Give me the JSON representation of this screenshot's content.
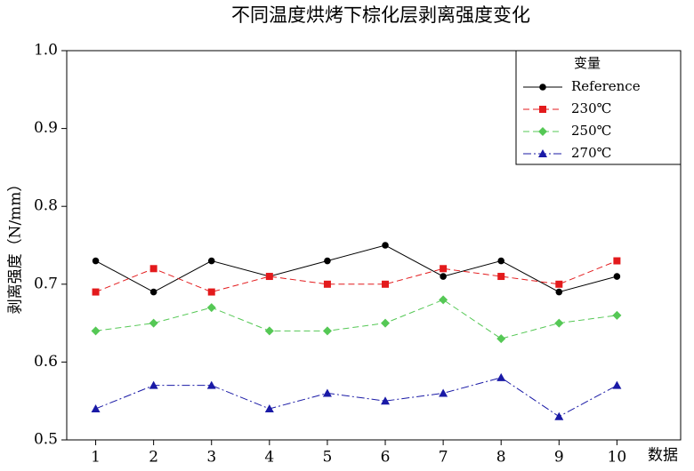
{
  "chart_data": {
    "type": "line",
    "title": "不同温度烘烤下棕化层剥离强度变化",
    "x_label": "数据",
    "y_label": "剥离强度（N/mm）",
    "legend_title": "变量",
    "legend": "top-right",
    "x": [
      1,
      2,
      3,
      4,
      5,
      6,
      7,
      8,
      9,
      10
    ],
    "xlim": [
      0.5,
      11.1
    ],
    "xticks": [
      1,
      2,
      3,
      4,
      5,
      6,
      7,
      8,
      9,
      10
    ],
    "ylim": [
      0.5,
      1
    ],
    "yticks": [
      0.5,
      0.6,
      0.7,
      0.8,
      0.9,
      {
        "value": 1,
        "label": "1.0"
      }
    ],
    "series": [
      {
        "name": "Reference",
        "color": "#000000",
        "marker": "circle",
        "dash": "solid",
        "values": [
          0.73,
          0.69,
          0.73,
          0.71,
          0.73,
          0.75,
          0.71,
          0.73,
          0.69,
          0.71
        ]
      },
      {
        "name": "230℃",
        "color": "#e31a1c",
        "marker": "square",
        "dash": "dashed",
        "values": [
          0.69,
          0.72,
          0.69,
          0.71,
          0.7,
          0.7,
          0.72,
          0.71,
          0.7,
          0.73
        ]
      },
      {
        "name": "250℃",
        "color": "#55c855",
        "marker": "diamond",
        "dash": "dashed",
        "values": [
          0.64,
          0.65,
          0.67,
          0.64,
          0.64,
          0.65,
          0.68,
          0.63,
          0.65,
          0.66
        ]
      },
      {
        "name": "270℃",
        "color": "#1a1aa6",
        "marker": "triangle",
        "dash": "dashdot",
        "values": [
          0.54,
          0.57,
          0.57,
          0.54,
          0.56,
          0.55,
          0.56,
          0.58,
          0.53,
          0.57
        ]
      }
    ]
  }
}
